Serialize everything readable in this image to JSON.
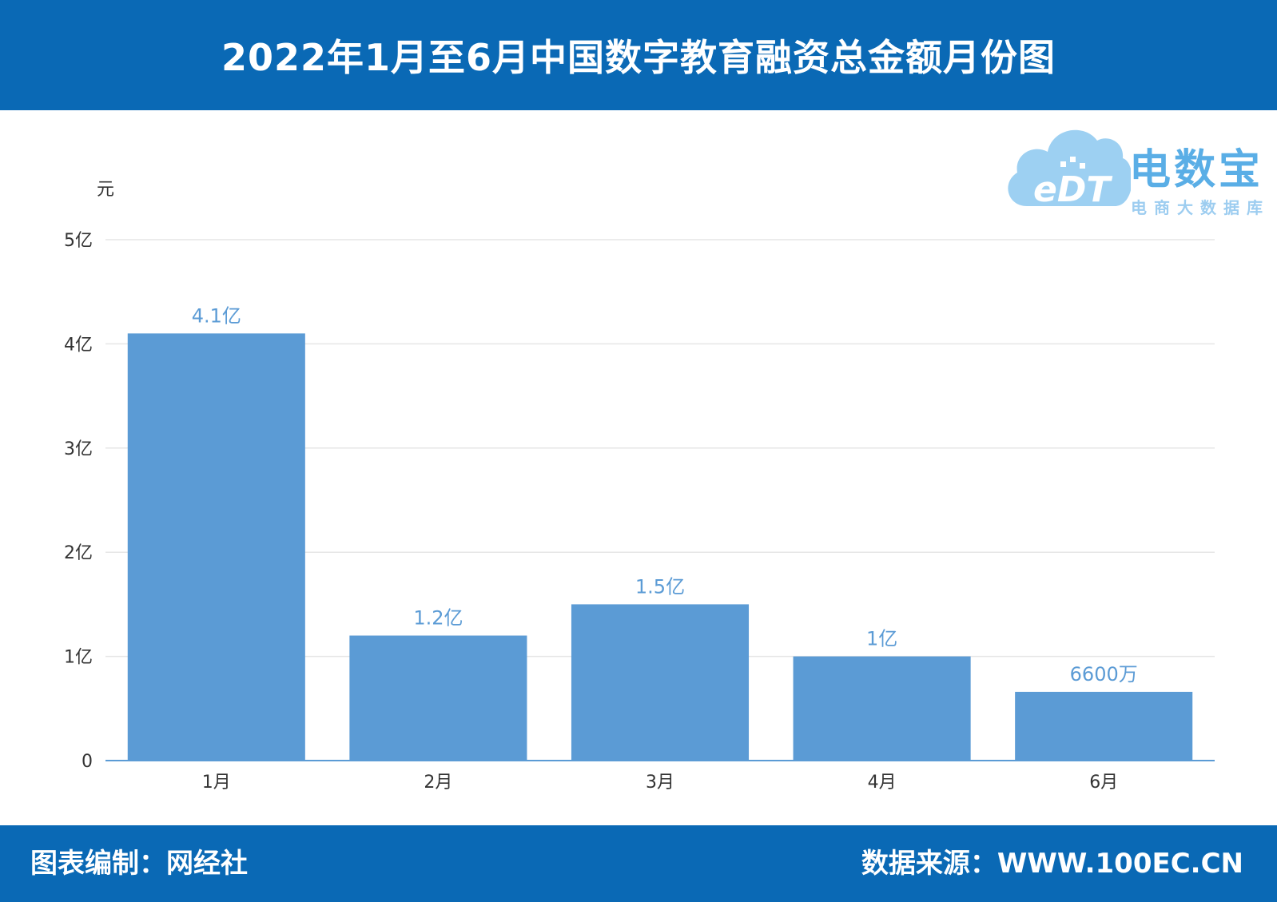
{
  "header": {
    "title": "2022年1月至6月中国数字教育融资总金额月份图"
  },
  "footer": {
    "compiler": "图表编制：网经社",
    "source": "数据来源：WWW.100EC.CN"
  },
  "logo": {
    "brand": "电数宝",
    "subtitle": "电商大数据库",
    "mark_text": "eDT"
  },
  "colors": {
    "header_bg": "#0a69b5",
    "bar": "#5b9bd5",
    "label": "#5b9bd5"
  },
  "chart_data": {
    "type": "bar",
    "ylabel": "元",
    "categories": [
      "1月",
      "2月",
      "3月",
      "4月",
      "6月"
    ],
    "values": [
      410000000,
      120000000,
      150000000,
      100000000,
      66000000
    ],
    "data_labels": [
      "4.1亿",
      "1.2亿",
      "1.5亿",
      "1亿",
      "6600万"
    ],
    "ylim": [
      0,
      500000000
    ],
    "yticks": [
      0,
      100000000,
      200000000,
      300000000,
      400000000,
      500000000
    ],
    "ytick_labels": [
      "0",
      "1亿",
      "2亿",
      "3亿",
      "4亿",
      "5亿"
    ],
    "grid": true,
    "legend": "none"
  }
}
